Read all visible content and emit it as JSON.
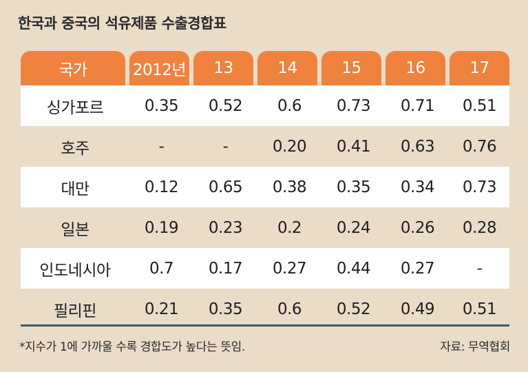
{
  "title": "한국과 중국의 석유제품 수출경합표",
  "table": {
    "headers": [
      "국가",
      "2012년",
      "13",
      "14",
      "15",
      "16",
      "17"
    ],
    "rows": [
      {
        "country": "싱가포르",
        "values": [
          "0.35",
          "0.52",
          "0.6",
          "0.73",
          "0.71",
          "0.51"
        ]
      },
      {
        "country": "호주",
        "values": [
          "-",
          "-",
          "0.20",
          "0.41",
          "0.63",
          "0.76"
        ]
      },
      {
        "country": "대만",
        "values": [
          "0.12",
          "0.65",
          "0.38",
          "0.35",
          "0.34",
          "0.73"
        ]
      },
      {
        "country": "일본",
        "values": [
          "0.19",
          "0.23",
          "0.2",
          "0.24",
          "0.26",
          "0.28"
        ]
      },
      {
        "country": "인도네시아",
        "values": [
          "0.7",
          "0.17",
          "0.27",
          "0.44",
          "0.27",
          "-"
        ]
      },
      {
        "country": "필리핀",
        "values": [
          "0.21",
          "0.35",
          "0.6",
          "0.52",
          "0.49",
          "0.51"
        ]
      }
    ]
  },
  "footnote": "*지수가 1에 가까울 수록 경합도가 높다는 뜻임.",
  "source": "자료: 무역협회",
  "colors": {
    "background": "#eadcc7",
    "header": "#f0823f",
    "rule": "#3f5a68"
  }
}
